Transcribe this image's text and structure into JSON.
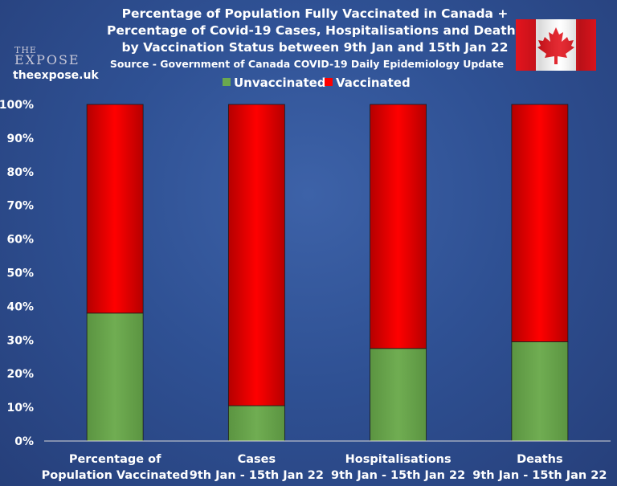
{
  "logo": {
    "line1": "THE",
    "line2": "EXPOSE",
    "url": "theexpose.uk"
  },
  "flag": {
    "icon": "canada-flag-icon",
    "red": "#e3141d",
    "white": "#ffffff"
  },
  "colors": {
    "unvaccinated": "#6aa84f",
    "vaccinated": "#ff0000",
    "background": "#2f5194",
    "text": "#ffffff"
  },
  "chart_data": {
    "type": "bar",
    "stacked": true,
    "title_lines": [
      "Percentage of Population Fully Vaccinated in Canada +",
      "Percentage of Covid-19 Cases, Hospitalisations and Deaths",
      "by Vaccination Status between 9th Jan and 15th Jan 22"
    ],
    "subtitle": "Source - Government of Canada COVID-19 Daily Epidemiology Update",
    "categories": [
      [
        "Percentage of",
        "Population Vaccinated"
      ],
      [
        "Cases",
        "9th Jan - 15th Jan 22"
      ],
      [
        "Hospitalisations",
        "9th Jan - 15th Jan 22"
      ],
      [
        "Deaths",
        "9th Jan - 15th Jan 22"
      ]
    ],
    "series": [
      {
        "name": "Unvaccinated",
        "values": [
          38,
          10.5,
          27.5,
          29.5
        ]
      },
      {
        "name": "Vaccinated",
        "values": [
          62,
          89.5,
          72.5,
          70.5
        ]
      }
    ],
    "ylim": [
      0,
      100
    ],
    "yticks": [
      "0%",
      "10%",
      "20%",
      "30%",
      "40%",
      "50%",
      "60%",
      "70%",
      "80%",
      "90%",
      "100%"
    ],
    "legend_position": "top-center",
    "grid": false
  }
}
